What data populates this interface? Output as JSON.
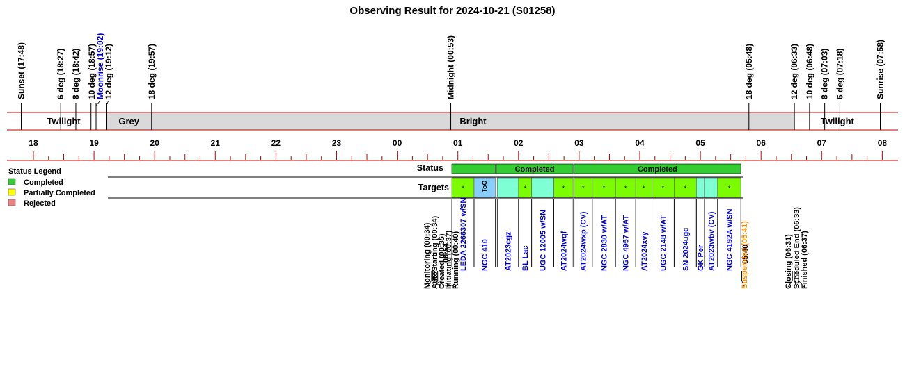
{
  "chart_data": {
    "type": "timeline",
    "title": "Observing Result for 2024-10-21 (S01258)",
    "time_ticks": [
      "18",
      "19",
      "20",
      "21",
      "22",
      "23",
      "00",
      "01",
      "02",
      "03",
      "04",
      "05",
      "06",
      "07",
      "08"
    ],
    "sky_events": [
      {
        "label": "Sunset (17:48)",
        "time": "17:48"
      },
      {
        "label": "6 deg (18:27)",
        "time": "18:27"
      },
      {
        "label": "8 deg (18:42)",
        "time": "18:42"
      },
      {
        "label": "10 deg (18:57)",
        "time": "18:57"
      },
      {
        "label": "Moonrise (19:02)",
        "time": "19:02",
        "color": "#0000cc"
      },
      {
        "label": "12 deg (19:12)",
        "time": "19:12"
      },
      {
        "label": "18 deg (19:57)",
        "time": "19:57"
      },
      {
        "label": "Midnight (00:53)",
        "time": "00:53"
      },
      {
        "label": "18 deg (05:48)",
        "time": "05:48"
      },
      {
        "label": "12 deg (06:33)",
        "time": "06:33"
      },
      {
        "label": "10 deg (06:48)",
        "time": "06:48"
      },
      {
        "label": "8 deg (07:03)",
        "time": "07:03"
      },
      {
        "label": "6 deg (07:18)",
        "time": "07:18"
      },
      {
        "label": "Sunrise (07:58)",
        "time": "07:58"
      }
    ],
    "bands": [
      {
        "label": "Twilight",
        "start": "17:48",
        "end": "19:12",
        "color": "#ffffff"
      },
      {
        "label": "Grey",
        "start": "19:12",
        "end": "19:57",
        "color": "#d9d9d9"
      },
      {
        "label": "Bright",
        "start": "19:57",
        "end": "06:33",
        "color": "#d9d9d9"
      },
      {
        "label": "Twilight",
        "start": "06:33",
        "end": "07:58",
        "color": "#ffffff"
      }
    ],
    "row_labels": {
      "status": "Status",
      "targets": "Targets"
    },
    "status_blocks": [
      {
        "start": "00:54",
        "end": "01:37",
        "label": ""
      },
      {
        "start": "01:38",
        "end": "02:54",
        "label": "Completed"
      },
      {
        "start": "02:55",
        "end": "05:40",
        "label": "Completed"
      }
    ],
    "targets": [
      {
        "name": "LEDA 2266307 w/SN",
        "start": "00:54",
        "end": "01:16",
        "mark": "*",
        "color": "#7cfc00"
      },
      {
        "name": "NGC 410",
        "start": "01:16",
        "end": "01:37",
        "mark": "ToO",
        "color": "#87cefa"
      },
      {
        "name": "AT2023cgz",
        "start": "01:39",
        "end": "02:00",
        "mark": "",
        "color": "#7fffd4"
      },
      {
        "name": "BL Lac",
        "start": "02:00",
        "end": "02:13",
        "mark": "*",
        "color": "#7cfc00"
      },
      {
        "name": "UGC 12005 w/SN",
        "start": "02:13",
        "end": "02:35",
        "mark": "",
        "color": "#7fffd4"
      },
      {
        "name": "AT2024wqf",
        "start": "02:35",
        "end": "02:54",
        "mark": "*",
        "color": "#7cfc00"
      },
      {
        "name": "AT2024wxp (CV)",
        "start": "02:55",
        "end": "03:13",
        "mark": "*",
        "color": "#7cfc00"
      },
      {
        "name": "NGC 2830 w/AT",
        "start": "03:13",
        "end": "03:36",
        "mark": "*",
        "color": "#7cfc00"
      },
      {
        "name": "NGC 4957 w/AT",
        "start": "03:36",
        "end": "03:56",
        "mark": "*",
        "color": "#7cfc00"
      },
      {
        "name": "AT2024xvy",
        "start": "03:56",
        "end": "04:12",
        "mark": "*",
        "color": "#7cfc00"
      },
      {
        "name": "UGC 2148 w/AT",
        "start": "04:12",
        "end": "04:34",
        "mark": "*",
        "color": "#7cfc00"
      },
      {
        "name": "SN 2024ugc",
        "start": "04:34",
        "end": "04:56",
        "mark": "*",
        "color": "#7cfc00"
      },
      {
        "name": "GK Per",
        "start": "04:56",
        "end": "05:04",
        "mark": "",
        "color": "#7fffd4"
      },
      {
        "name": "AT2023wbv (CV)",
        "start": "05:04",
        "end": "05:17",
        "mark": "",
        "color": "#7fffd4"
      },
      {
        "name": "NGC 4192A w/SN",
        "start": "05:17",
        "end": "05:40",
        "mark": "*",
        "color": "#7cfc00"
      }
    ],
    "run_start": {
      "label": "00:54",
      "time": "00:54"
    },
    "run_end": {
      "label": "05:40",
      "time": "05:40"
    },
    "operation_events": [
      {
        "label": "Monitoring (00:34)",
        "time": "00:34"
      },
      {
        "label": "AutoStarting (00:34)",
        "time": "00:34"
      },
      {
        "label": "Created (00:35)",
        "time": "00:35"
      },
      {
        "label": "Initiating (00:37)",
        "time": "00:37"
      },
      {
        "label": "Running (00:40)",
        "time": "00:40"
      },
      {
        "label": "Suspended (05:41)",
        "time": "05:41",
        "color": "#ff8c00"
      },
      {
        "label": "Closing (06:31)",
        "time": "06:31"
      },
      {
        "label": "Scheduled End (06:33)",
        "time": "06:33"
      },
      {
        "label": "Finished (06:37)",
        "time": "06:37"
      }
    ],
    "legend": {
      "title": "Status Legend",
      "placement": "left",
      "items": [
        {
          "label": "Completed",
          "color": "#33cc33"
        },
        {
          "label": "Partially Completed",
          "color": "#ffff00"
        },
        {
          "label": "Rejected",
          "color": "#f08080"
        }
      ]
    }
  }
}
